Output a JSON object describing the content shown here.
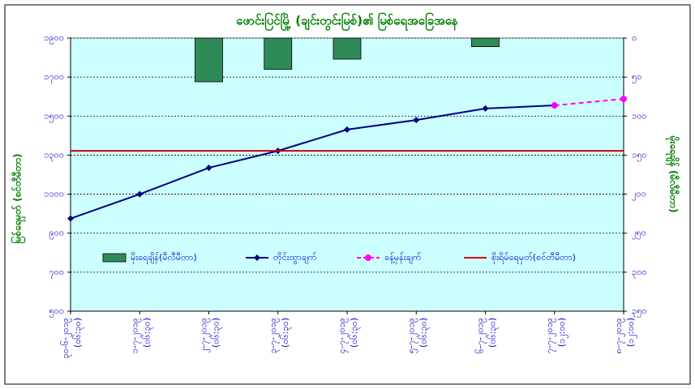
{
  "chart_data": {
    "type": "combo",
    "title": "ဖောင်းပြင်မြို့ (ချင်းတွင်းမြစ်)၏ မြစ်ရေအခြေအနေ",
    "y_label": "မြစ်ရေမှတ် (စင်တီမီတာ)",
    "y2_label": "မိုးရေချိန် (မီလီမီတာ)",
    "categories": [
      "၃၀-၆-၂၀၁၉",
      "၁-၇-၂၀၁၉",
      "၂-၇-၂၀၁၉",
      "၃-၇-၂၀၁၉",
      "၄-၇-၂၀၁၉",
      "၅-၇-၂၀၁၉",
      "၆-၇-၂၀၁၉",
      "၇-၇-၂၀၁၉",
      "၈-၇-၂၀၁၉"
    ],
    "category_times": [
      "(၀၆:၃၀)",
      "(၀၆:၃၀)",
      "(၀၆:၃၀)",
      "(၀၆:၃၀)",
      "(၀၆:၃၀)",
      "(၀၆:၃၀)",
      "(၀၆:၃၀)",
      "(၁၂:၀၀)",
      "(၁၂:၀၀)"
    ],
    "ylim": [
      500,
      1900
    ],
    "yticks": [
      {
        "value": 500,
        "label": "၅၀၀"
      },
      {
        "value": 700,
        "label": "၇၀၀"
      },
      {
        "value": 900,
        "label": "၉၀၀"
      },
      {
        "value": 1100,
        "label": "၁၁၀၀"
      },
      {
        "value": 1300,
        "label": "၁၃၀၀"
      },
      {
        "value": 1500,
        "label": "၁၅၀၀"
      },
      {
        "value": 1700,
        "label": "၁၇၀၀"
      },
      {
        "value": 1900,
        "label": "၁၉၀၀"
      }
    ],
    "y2lim": [
      0,
      350
    ],
    "y2_inverted": true,
    "y2ticks": [
      {
        "value": 0,
        "label": "၀"
      },
      {
        "value": 50,
        "label": "၅၀"
      },
      {
        "value": 100,
        "label": "၁၀၀"
      },
      {
        "value": 150,
        "label": "၁၅၀"
      },
      {
        "value": 200,
        "label": "၂၀၀"
      },
      {
        "value": 250,
        "label": "၂၅၀"
      },
      {
        "value": 300,
        "label": "၃၀၀"
      },
      {
        "value": 350,
        "label": "၃၅၀"
      }
    ],
    "grid": true,
    "series": [
      {
        "name": "မိုးရေချိန်(မီလီမီတာ)",
        "kind": "bar",
        "axis": "y2",
        "color": "#2e8b57",
        "values": [
          null,
          null,
          56,
          40,
          27,
          null,
          11,
          null,
          null
        ]
      },
      {
        "name": "တိုင်းထွာချက်",
        "kind": "line",
        "color": "#000080",
        "values": [
          975,
          1100,
          1235,
          1322,
          1431,
          1480,
          1539,
          1555,
          null
        ]
      },
      {
        "name": "ခန့်မှန်းချက်",
        "kind": "dashed",
        "color": "#ff00ff",
        "values": [
          null,
          null,
          null,
          null,
          null,
          null,
          null,
          1555,
          1588
        ]
      },
      {
        "name": "စိုးရိမ်ရေမှတ်(စင်တီမီတာ)",
        "kind": "plain",
        "color": "#cc0000",
        "values": [
          1322,
          1322,
          1322,
          1322,
          1322,
          1322,
          1322,
          1322,
          1322
        ]
      }
    ]
  }
}
